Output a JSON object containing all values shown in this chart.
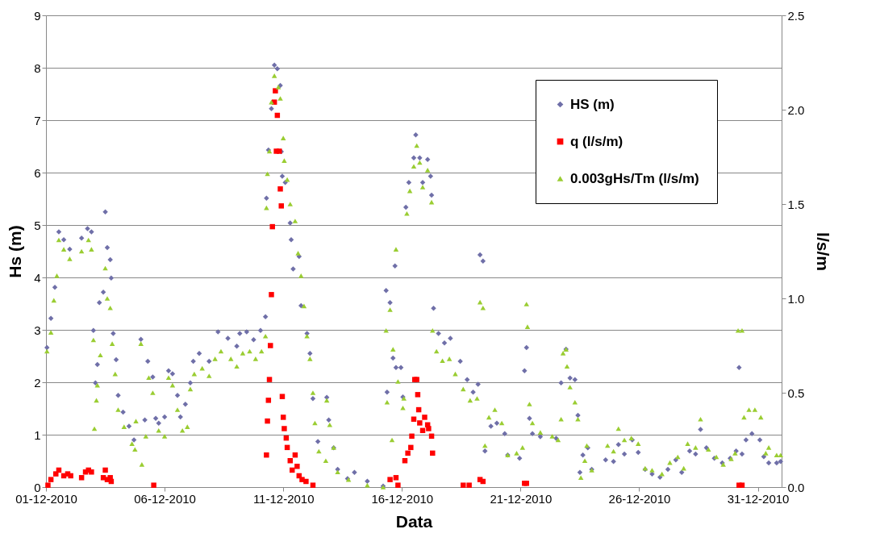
{
  "chart_data": {
    "type": "scatter",
    "xlabel": "Data",
    "ylabel": "Hs (m)",
    "y2label": "l/s/m",
    "xlim": [
      "2010-12-01",
      "2011-01-01"
    ],
    "xticks": [
      {
        "value": "2010-12-01",
        "label": "01-12-2010"
      },
      {
        "value": "2010-12-06",
        "label": "06-12-2010"
      },
      {
        "value": "2010-12-11",
        "label": "11-12-2010"
      },
      {
        "value": "2010-12-16",
        "label": "16-12-2010"
      },
      {
        "value": "2010-12-21",
        "label": "21-12-2010"
      },
      {
        "value": "2010-12-26",
        "label": "26-12-2010"
      },
      {
        "value": "2010-12-31",
        "label": "31-12-2010"
      }
    ],
    "ylim": [
      0,
      9
    ],
    "yticks": [
      0,
      1,
      2,
      3,
      4,
      5,
      6,
      7,
      8,
      9
    ],
    "y2lim": [
      0,
      2.5
    ],
    "y2ticks": [
      {
        "value": 0,
        "label": "0.0"
      },
      {
        "value": 0.5,
        "label": "0.5"
      },
      {
        "value": 1,
        "label": "1.0"
      },
      {
        "value": 1.5,
        "label": "1.5"
      },
      {
        "value": 2,
        "label": "2.0"
      },
      {
        "value": 2.5,
        "label": "2.5"
      }
    ],
    "grid": "y",
    "legend": "top right",
    "series": [
      {
        "name": "HS (m)",
        "color": "#6f6fa8",
        "marker": "diamond",
        "x": [
          "2010-12-01T01:00",
          "2010-12-01T05:00",
          "2010-12-01T09:00",
          "2010-12-01T13:00",
          "2010-12-01T18:00",
          "2010-12-02T00:00",
          "2010-12-02T12:00",
          "2010-12-02T18:00",
          "2010-12-02T22:00",
          "2010-12-03T00:00",
          "2010-12-03T02:00",
          "2010-12-03T04:00",
          "2010-12-03T06:00",
          "2010-12-03T10:00",
          "2010-12-03T12:00",
          "2010-12-03T14:00",
          "2010-12-03T17:00",
          "2010-12-03T18:00",
          "2010-12-03T20:00",
          "2010-12-03T23:00",
          "2010-12-04T01:00",
          "2010-12-04T06:00",
          "2010-12-04T12:00",
          "2010-12-04T17:00",
          "2010-12-05T00:00",
          "2010-12-05T04:00",
          "2010-12-05T07:00",
          "2010-12-05T12:00",
          "2010-12-05T15:00",
          "2010-12-05T18:00",
          "2010-12-06T00:00",
          "2010-12-06T04:00",
          "2010-12-06T08:00",
          "2010-12-06T13:00",
          "2010-12-06T16:00",
          "2010-12-06T21:00",
          "2010-12-07T02:00",
          "2010-12-07T05:00",
          "2010-12-07T11:00",
          "2010-12-07T21:00",
          "2010-12-08T06:00",
          "2010-12-08T16:00",
          "2010-12-09T01:00",
          "2010-12-09T04:00",
          "2010-12-09T11:00",
          "2010-12-09T18:00",
          "2010-12-10T01:00",
          "2010-12-10T06:00",
          "2010-12-10T07:00",
          "2010-12-10T09:00",
          "2010-12-10T12:00",
          "2010-12-10T15:00",
          "2010-12-10T18:00",
          "2010-12-10T21:00",
          "2010-12-10T22:00",
          "2010-12-10T23:00",
          "2010-12-11T02:00",
          "2010-12-11T07:00",
          "2010-12-11T08:00",
          "2010-12-11T10:00",
          "2010-12-11T16:00",
          "2010-12-11T18:00",
          "2010-12-12T00:00",
          "2010-12-12T03:00",
          "2010-12-12T06:00",
          "2010-12-12T11:00",
          "2010-12-12T20:00",
          "2010-12-12T22:00",
          "2010-12-13T03:00",
          "2010-12-13T07:00",
          "2010-12-13T17:00",
          "2010-12-14T00:00",
          "2010-12-14T13:00",
          "2010-12-15T05:00",
          "2010-12-15T08:00",
          "2010-12-15T09:00",
          "2010-12-15T12:00",
          "2010-12-15T15:00",
          "2010-12-15T17:00",
          "2010-12-15T18:00",
          "2010-12-15T23:00",
          "2010-12-16T01:00",
          "2010-12-16T04:00",
          "2010-12-16T07:00",
          "2010-12-16T12:00",
          "2010-12-16T14:00",
          "2010-12-16T18:00",
          "2010-12-16T21:00",
          "2010-12-17T02:00",
          "2010-12-17T05:00",
          "2010-12-17T06:00",
          "2010-12-17T08:00",
          "2010-12-17T13:00",
          "2010-12-17T19:00",
          "2010-12-18T01:00",
          "2010-12-18T11:00",
          "2010-12-18T18:00",
          "2010-12-19T00:00",
          "2010-12-19T05:00",
          "2010-12-19T07:00",
          "2010-12-19T10:00",
          "2010-12-19T12:00",
          "2010-12-19T18:00",
          "2010-12-20T00:00",
          "2010-12-20T08:00",
          "2010-12-20T11:00",
          "2010-12-20T23:00",
          "2010-12-21T04:00",
          "2010-12-21T06:00",
          "2010-12-21T09:00",
          "2010-12-21T12:00",
          "2010-12-21T20:00",
          "2010-12-22T12:00",
          "2010-12-22T17:00",
          "2010-12-22T22:00",
          "2010-12-23T02:00",
          "2010-12-23T07:00",
          "2010-12-23T10:00",
          "2010-12-23T12:00",
          "2010-12-23T15:00",
          "2010-12-23T20:00",
          "2010-12-24T00:00",
          "2010-12-24T14:00",
          "2010-12-24T22:00",
          "2010-12-25T03:00",
          "2010-12-25T09:00",
          "2010-12-25T17:00",
          "2010-12-25T23:00",
          "2010-12-26T06:00",
          "2010-12-26T13:00",
          "2010-12-26T21:00",
          "2010-12-27T05:00",
          "2010-12-27T13:00",
          "2010-12-27T19:00",
          "2010-12-28T03:00",
          "2010-12-28T09:00",
          "2010-12-28T14:00",
          "2010-12-28T20:00",
          "2010-12-29T04:00",
          "2010-12-29T12:00",
          "2010-12-29T20:00",
          "2010-12-30T02:00",
          "2010-12-30T05:00",
          "2010-12-30T08:00",
          "2010-12-30T12:00",
          "2010-12-30T18:00",
          "2010-12-31T02:00",
          "2010-12-31T06:00",
          "2010-12-31T11:00",
          "2010-12-31T19:00",
          "2010-12-31T23:00"
        ],
        "values": [
          2.66,
          3.22,
          3.81,
          4.87,
          4.72,
          4.54,
          4.75,
          4.93,
          4.87,
          2.99,
          1.99,
          2.34,
          3.52,
          3.72,
          5.25,
          4.57,
          4.34,
          3.99,
          2.93,
          2.43,
          1.75,
          1.43,
          1.16,
          0.9,
          2.82,
          1.28,
          2.4,
          2.1,
          1.31,
          1.22,
          1.34,
          2.22,
          2.16,
          1.75,
          1.34,
          1.58,
          1.99,
          2.4,
          2.55,
          2.4,
          2.96,
          2.84,
          2.69,
          2.93,
          2.96,
          2.81,
          2.99,
          3.25,
          5.51,
          6.43,
          7.22,
          8.05,
          7.98,
          7.66,
          6.4,
          5.93,
          5.81,
          5.04,
          4.72,
          4.16,
          4.4,
          3.46,
          2.93,
          2.55,
          1.69,
          0.87,
          1.71,
          1.28,
          0.75,
          0.34,
          0.16,
          0.28,
          0.11,
          0.02,
          3.75,
          1.81,
          3.52,
          2.46,
          4.22,
          2.28,
          2.28,
          1.72,
          5.34,
          5.81,
          6.28,
          6.72,
          6.28,
          5.81,
          6.25,
          5.93,
          5.57,
          3.41,
          2.93,
          2.75,
          2.84,
          2.4,
          2.05,
          1.81,
          1.96,
          4.43,
          4.31,
          0.69,
          1.16,
          1.22,
          1.02,
          0.61,
          0.55,
          2.22,
          2.66,
          1.31,
          1.02,
          0.96,
          0.93,
          1.99,
          2.63,
          2.08,
          2.05,
          1.37,
          0.28,
          0.61,
          0.75,
          0.34,
          0.52,
          0.49,
          0.81,
          0.63,
          0.9,
          0.66,
          0.34,
          0.25,
          0.19,
          0.34,
          0.52,
          0.28,
          0.69,
          0.63,
          1.1,
          0.75,
          0.55,
          0.46,
          0.55,
          0.69,
          2.28,
          0.63,
          0.9,
          1.02,
          0.9,
          0.58,
          0.46,
          0.46,
          0.49
        ]
      },
      {
        "name": "q (l/s/m)",
        "color": "#ff0000",
        "marker": "square",
        "axis": "y2",
        "x": [
          "2010-12-01T02:00",
          "2010-12-01T05:00",
          "2010-12-01T10:00",
          "2010-12-01T13:00",
          "2010-12-01T18:00",
          "2010-12-01T22:00",
          "2010-12-02T01:00",
          "2010-12-02T12:00",
          "2010-12-02T16:00",
          "2010-12-02T19:00",
          "2010-12-02T22:00",
          "2010-12-03T10:00",
          "2010-12-03T12:00",
          "2010-12-03T14:00",
          "2010-12-03T17:00",
          "2010-12-03T18:00",
          "2010-12-05T13:00",
          "2010-12-10T07:00",
          "2010-12-10T08:00",
          "2010-12-10T09:00",
          "2010-12-10T10:00",
          "2010-12-10T11:00",
          "2010-12-10T12:00",
          "2010-12-10T13:00",
          "2010-12-10T15:00",
          "2010-12-10T16:00",
          "2010-12-10T17:00",
          "2010-12-10T18:00",
          "2010-12-10T20:00",
          "2010-12-10T21:00",
          "2010-12-10T22:00",
          "2010-12-10T23:00",
          "2010-12-11T00:00",
          "2010-12-11T01:00",
          "2010-12-11T03:00",
          "2010-12-11T04:00",
          "2010-12-11T07:00",
          "2010-12-11T09:00",
          "2010-12-11T12:00",
          "2010-12-11T14:00",
          "2010-12-11T16:00",
          "2010-12-11T19:00",
          "2010-12-11T23:00",
          "2010-12-12T06:00",
          "2010-12-15T12:00",
          "2010-12-15T18:00",
          "2010-12-15T20:00",
          "2010-12-16T03:00",
          "2010-12-16T06:00",
          "2010-12-16T09:00",
          "2010-12-16T10:00",
          "2010-12-16T12:00",
          "2010-12-16T13:00",
          "2010-12-16T15:00",
          "2010-12-16T16:00",
          "2010-12-16T17:00",
          "2010-12-16T18:00",
          "2010-12-16T21:00",
          "2010-12-16T23:00",
          "2010-12-17T02:00",
          "2010-12-17T03:00",
          "2010-12-17T06:00",
          "2010-12-17T07:00",
          "2010-12-18T14:00",
          "2010-12-18T20:00",
          "2010-12-19T07:00",
          "2010-12-19T10:00",
          "2010-12-21T04:00",
          "2010-12-21T06:00",
          "2010-12-30T05:00",
          "2010-12-30T08:00"
        ],
        "values": [
          0.01,
          0.04,
          0.07,
          0.09,
          0.06,
          0.07,
          0.06,
          0.05,
          0.08,
          0.09,
          0.08,
          0.05,
          0.09,
          0.04,
          0.05,
          0.03,
          0.01,
          0.17,
          0.35,
          0.46,
          0.57,
          0.75,
          1.02,
          1.38,
          2.04,
          2.1,
          1.78,
          1.97,
          1.78,
          1.58,
          1.49,
          0.48,
          0.37,
          0.31,
          0.26,
          0.21,
          0.14,
          0.09,
          0.17,
          0.11,
          0.06,
          0.04,
          0.03,
          0.01,
          0.04,
          0.05,
          0.01,
          0.14,
          0.18,
          0.21,
          0.27,
          0.36,
          0.57,
          0.57,
          0.49,
          0.41,
          0.34,
          0.3,
          0.37,
          0.33,
          0.31,
          0.27,
          0.18,
          0.01,
          0.01,
          0.04,
          0.03,
          0.02,
          0.02,
          0.01,
          0.01
        ]
      },
      {
        "name": "0.003gHs/Tm (l/s/m)",
        "color": "#9acd32",
        "marker": "triangle",
        "axis": "y2",
        "x": [
          "2010-12-01T01:00",
          "2010-12-01T05:00",
          "2010-12-01T08:00",
          "2010-12-01T11:00",
          "2010-12-01T13:00",
          "2010-12-01T18:00",
          "2010-12-02T00:00",
          "2010-12-02T12:00",
          "2010-12-02T19:00",
          "2010-12-02T22:00",
          "2010-12-03T00:00",
          "2010-12-03T01:00",
          "2010-12-03T03:00",
          "2010-12-03T04:00",
          "2010-12-03T07:00",
          "2010-12-03T12:00",
          "2010-12-03T14:00",
          "2010-12-03T17:00",
          "2010-12-03T19:00",
          "2010-12-03T22:00",
          "2010-12-04T01:00",
          "2010-12-04T07:00",
          "2010-12-04T15:00",
          "2010-12-04T18:00",
          "2010-12-04T19:00",
          "2010-12-05T00:00",
          "2010-12-05T01:00",
          "2010-12-05T05:00",
          "2010-12-05T08:00",
          "2010-12-05T12:00",
          "2010-12-05T18:00",
          "2010-12-06T00:00",
          "2010-12-06T04:00",
          "2010-12-06T08:00",
          "2010-12-06T13:00",
          "2010-12-06T18:00",
          "2010-12-06T23:00",
          "2010-12-07T02:00",
          "2010-12-07T06:00",
          "2010-12-07T14:00",
          "2010-12-07T21:00",
          "2010-12-08T03:00",
          "2010-12-08T09:00",
          "2010-12-08T19:00",
          "2010-12-09T01:00",
          "2010-12-09T07:00",
          "2010-12-09T14:00",
          "2010-12-09T20:00",
          "2010-12-10T02:00",
          "2010-12-10T06:00",
          "2010-12-10T07:00",
          "2010-12-10T08:00",
          "2010-12-10T10:00",
          "2010-12-10T12:00",
          "2010-12-10T15:00",
          "2010-12-10T19:00",
          "2010-12-10T21:00",
          "2010-12-11T00:00",
          "2010-12-11T01:00",
          "2010-12-11T04:00",
          "2010-12-11T07:00",
          "2010-12-11T12:00",
          "2010-12-11T15:00",
          "2010-12-11T18:00",
          "2010-12-11T21:00",
          "2010-12-12T00:00",
          "2010-12-12T03:00",
          "2010-12-12T06:00",
          "2010-12-12T08:00",
          "2010-12-12T12:00",
          "2010-12-12T19:00",
          "2010-12-12T20:00",
          "2010-12-12T23:00",
          "2010-12-13T03:00",
          "2010-12-13T07:00",
          "2010-12-13T18:00",
          "2010-12-14T13:00",
          "2010-12-15T05:00",
          "2010-12-15T08:00",
          "2010-12-15T09:00",
          "2010-12-15T12:00",
          "2010-12-15T14:00",
          "2010-12-15T15:00",
          "2010-12-15T18:00",
          "2010-12-15T20:00",
          "2010-12-16T01:00",
          "2010-12-16T02:00",
          "2010-12-16T05:00",
          "2010-12-16T08:00",
          "2010-12-16T12:00",
          "2010-12-16T15:00",
          "2010-12-16T18:00",
          "2010-12-16T21:00",
          "2010-12-17T02:00",
          "2010-12-17T06:00",
          "2010-12-17T07:00",
          "2010-12-17T11:00",
          "2010-12-17T17:00",
          "2010-12-18T00:00",
          "2010-12-18T06:00",
          "2010-12-18T14:00",
          "2010-12-18T21:00",
          "2010-12-19T04:00",
          "2010-12-19T07:00",
          "2010-12-19T10:00",
          "2010-12-19T12:00",
          "2010-12-19T16:00",
          "2010-12-19T22:00",
          "2010-12-20T05:00",
          "2010-12-20T11:00",
          "2010-12-20T20:00",
          "2010-12-21T02:00",
          "2010-12-21T06:00",
          "2010-12-21T07:00",
          "2010-12-21T09:00",
          "2010-12-21T12:00",
          "2010-12-21T20:00",
          "2010-12-22T08:00",
          "2010-12-22T14:00",
          "2010-12-22T17:00",
          "2010-12-22T19:00",
          "2010-12-22T22:00",
          "2010-12-22T23:00",
          "2010-12-23T02:00",
          "2010-12-23T07:00",
          "2010-12-23T10:00",
          "2010-12-23T13:00",
          "2010-12-23T17:00",
          "2010-12-23T19:00",
          "2010-12-24T00:00",
          "2010-12-24T16:00",
          "2010-12-24T22:00",
          "2010-12-25T03:00",
          "2010-12-25T09:00",
          "2010-12-25T16:00",
          "2010-12-25T23:00",
          "2010-12-26T06:00",
          "2010-12-26T13:00",
          "2010-12-26T23:00",
          "2010-12-27T07:00",
          "2010-12-27T15:00",
          "2010-12-27T21:00",
          "2010-12-28T01:00",
          "2010-12-28T09:00",
          "2010-12-28T14:00",
          "2010-12-28T22:00",
          "2010-12-29T06:00",
          "2010-12-29T13:00",
          "2010-12-29T21:00",
          "2010-12-30T01:00",
          "2010-12-30T04:00",
          "2010-12-30T08:00",
          "2010-12-30T10:00",
          "2010-12-30T15:00",
          "2010-12-30T21:00",
          "2010-12-31T03:00",
          "2010-12-31T08:00",
          "2010-12-31T11:00",
          "2010-12-31T19:00",
          "2010-12-31T23:00"
        ],
        "values": [
          0.72,
          0.82,
          0.99,
          1.12,
          1.31,
          1.26,
          1.21,
          1.25,
          1.31,
          1.26,
          0.78,
          0.31,
          0.46,
          0.54,
          0.7,
          1.16,
          1.0,
          0.95,
          0.76,
          0.6,
          0.41,
          0.32,
          0.23,
          0.2,
          0.35,
          0.76,
          0.12,
          0.27,
          0.58,
          0.5,
          0.3,
          0.27,
          0.58,
          0.54,
          0.41,
          0.3,
          0.32,
          0.52,
          0.6,
          0.63,
          0.59,
          0.68,
          0.72,
          0.68,
          0.64,
          0.71,
          0.72,
          0.68,
          0.72,
          0.8,
          1.48,
          1.66,
          1.78,
          2.04,
          2.18,
          2.12,
          2.06,
          1.85,
          1.73,
          1.63,
          1.5,
          1.41,
          1.24,
          1.12,
          0.96,
          0.8,
          0.68,
          0.5,
          0.34,
          0.19,
          0.14,
          0.46,
          0.33,
          0.21,
          0.08,
          0.04,
          0.01,
          0,
          0.83,
          0.45,
          0.94,
          0.25,
          0.73,
          1.26,
          0.56,
          0.42,
          0.47,
          1.45,
          1.57,
          1.7,
          1.81,
          1.72,
          1.59,
          1.68,
          1.51,
          0.83,
          0.72,
          0.67,
          0.68,
          0.6,
          0.52,
          0.46,
          0.47,
          0.98,
          0.95,
          0.22,
          0.37,
          0.41,
          0.34,
          0.17,
          0.18,
          0.21,
          0.97,
          0.85,
          0.44,
          0.34,
          0.29,
          0.27,
          0.25,
          0.36,
          0.71,
          0.73,
          0.64,
          0.53,
          0.45,
          0.36,
          0.05,
          0.14,
          0.22,
          0.09,
          0.22,
          0.19,
          0.31,
          0.25,
          0.26,
          0.23,
          0.1,
          0.09,
          0.07,
          0.13,
          0.16,
          0.1,
          0.23,
          0.21,
          0.36,
          0.2,
          0.16,
          0.12,
          0.15,
          0.18,
          0.83,
          0.83,
          0.37,
          0.41,
          0.41,
          0.37,
          0.18,
          0.21,
          0.17,
          0.17
        ]
      }
    ]
  }
}
